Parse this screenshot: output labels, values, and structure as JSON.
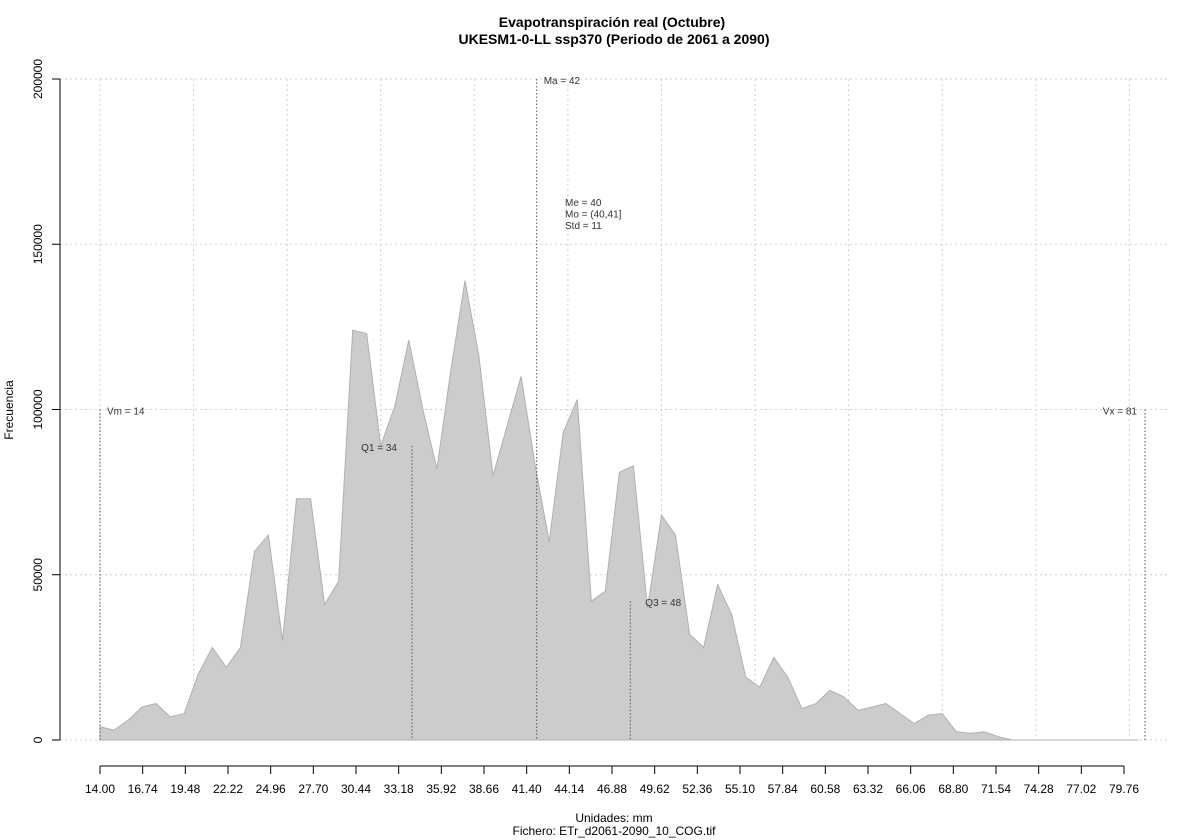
{
  "chart_data": {
    "type": "area",
    "title": "Evapotranspiración real (Octubre)",
    "subtitle": "UKESM1-0-LL ssp370 (Periodo de 2061 a 2090)",
    "xlabel": "Unidades: mm",
    "ylabel": "Frecuencia",
    "footer": "Fichero: ETr_d2061-2090_10_COG.tif",
    "xlim": [
      14.0,
      81.0
    ],
    "ylim": [
      0,
      200000
    ],
    "grid": true,
    "x_tick_labels": [
      "14.00",
      "16.74",
      "19.48",
      "22.22",
      "24.96",
      "27.70",
      "30.44",
      "33.18",
      "35.92",
      "38.66",
      "41.40",
      "44.14",
      "46.88",
      "49.62",
      "52.36",
      "55.10",
      "57.84",
      "60.58",
      "63.32",
      "66.06",
      "68.80",
      "71.54",
      "74.28",
      "77.02",
      "79.76"
    ],
    "x_tick_values": [
      14.0,
      16.74,
      19.48,
      22.22,
      24.96,
      27.7,
      30.44,
      33.18,
      35.92,
      38.66,
      41.4,
      44.14,
      46.88,
      49.62,
      52.36,
      55.1,
      57.84,
      60.58,
      63.32,
      66.06,
      68.8,
      71.54,
      74.28,
      77.02,
      79.76
    ],
    "x_gridlines": [
      14.0,
      20.0,
      26.0,
      32.0,
      38.0,
      44.0,
      50.0,
      56.0,
      62.0,
      68.0,
      74.0,
      80.0
    ],
    "y_ticks": [
      0,
      50000,
      100000,
      150000,
      200000
    ],
    "y_tick_labels": [
      "0",
      "50000",
      "100000",
      "150000",
      "200000"
    ],
    "x": [
      14.0,
      14.9,
      15.8,
      16.7,
      17.6,
      18.5,
      19.4,
      20.3,
      21.2,
      22.1,
      23.0,
      23.9,
      24.8,
      25.7,
      26.6,
      27.5,
      28.4,
      29.3,
      30.2,
      31.1,
      32.0,
      32.9,
      33.8,
      34.7,
      35.6,
      36.5,
      37.4,
      38.3,
      39.2,
      40.1,
      41.0,
      41.9,
      42.8,
      43.7,
      44.6,
      45.5,
      46.4,
      47.3,
      48.2,
      49.1,
      50.0,
      50.9,
      51.8,
      52.7,
      53.6,
      54.5,
      55.4,
      56.3,
      57.2,
      58.1,
      59.0,
      59.9,
      60.8,
      61.7,
      62.6,
      63.5,
      64.4,
      65.3,
      66.2,
      67.1,
      68.0,
      68.9,
      69.8,
      70.7,
      71.6,
      72.5,
      73.4,
      74.3,
      75.2,
      76.1,
      77.0,
      77.9,
      78.8,
      79.7,
      80.6
    ],
    "values": [
      4000,
      3000,
      6000,
      10000,
      11000,
      7000,
      8000,
      20000,
      28000,
      22000,
      28000,
      57000,
      62000,
      30000,
      73000,
      73000,
      41000,
      48000,
      124000,
      123000,
      89000,
      101000,
      121000,
      100000,
      82000,
      112000,
      139000,
      116000,
      80000,
      95000,
      110000,
      83000,
      60000,
      93000,
      103000,
      42000,
      45000,
      81000,
      83000,
      40000,
      68000,
      62000,
      32000,
      28000,
      47000,
      38000,
      19000,
      16000,
      25000,
      19000,
      9500,
      11000,
      15000,
      13000,
      9000,
      10000,
      11000,
      8000,
      5000,
      7500,
      8000,
      2500,
      2000,
      2500,
      1000,
      0,
      0,
      0,
      0,
      0,
      0,
      0,
      0,
      0,
      0
    ],
    "markers": [
      {
        "label": "Vm = 14",
        "x": 14.0,
        "y": 100000
      },
      {
        "label": "Q1 = 34",
        "x": 34.0,
        "y": 89000
      },
      {
        "label": "Ma = 42",
        "x": 42.0,
        "y": 200000
      },
      {
        "label": "Q3 = 48",
        "x": 48.0,
        "y": 42000
      },
      {
        "label": "Vx = 81",
        "x": 81.0,
        "y": 100000
      }
    ],
    "stats_text": [
      "Me = 40",
      "Mo = (40,41]",
      "Std = 11"
    ],
    "colors": {
      "fill": "#cccccc",
      "outline": "#b0b0b0",
      "grid": "#cfcfcf",
      "axis": "#000000"
    }
  }
}
